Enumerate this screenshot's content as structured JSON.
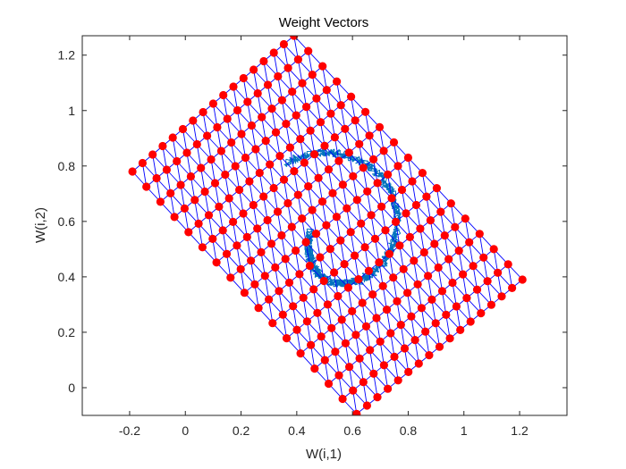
{
  "chart_data": {
    "type": "scatter",
    "title": "Weight Vectors",
    "xlabel": "W(i,1)",
    "ylabel": "W(i,2)",
    "xlim": [
      -0.37,
      1.37
    ],
    "ylim": [
      -0.1,
      1.27
    ],
    "xticks": [
      -0.2,
      0,
      0.2,
      0.4,
      0.6,
      0.8,
      1,
      1.2
    ],
    "xtick_labels": [
      "-0.2",
      "0",
      "0.2",
      "0.4",
      "0.6",
      "0.8",
      "1",
      "1.2"
    ],
    "yticks": [
      0,
      0.2,
      0.4,
      0.6,
      0.8,
      1,
      1.2
    ],
    "ytick_labels": [
      "0",
      "0.2",
      "0.4",
      "0.6",
      "0.8",
      "1",
      "1.2"
    ],
    "grid": false,
    "series": [
      {
        "kind": "hexagonal_som_lattice",
        "rows": 17,
        "cols": 17,
        "corners": {
          "row0_col0": [
            0.615,
            -0.095
          ],
          "row0_col16": [
            1.21,
            0.39
          ],
          "row16_col0": [
            -0.19,
            0.78
          ],
          "row16_col16": [
            0.39,
            1.27
          ]
        },
        "marker_color": "#ff0000",
        "line_color": "#0000ff"
      },
      {
        "kind": "input_data_spiral",
        "center": [
          0.54,
          0.56
        ],
        "a_start": 0.09,
        "a_end": 0.305,
        "b_start": 0.13,
        "b_end": 0.305,
        "theta_start_deg": 180,
        "theta_end_deg": 485,
        "samples": 1200,
        "color": "#0072bd"
      }
    ]
  }
}
